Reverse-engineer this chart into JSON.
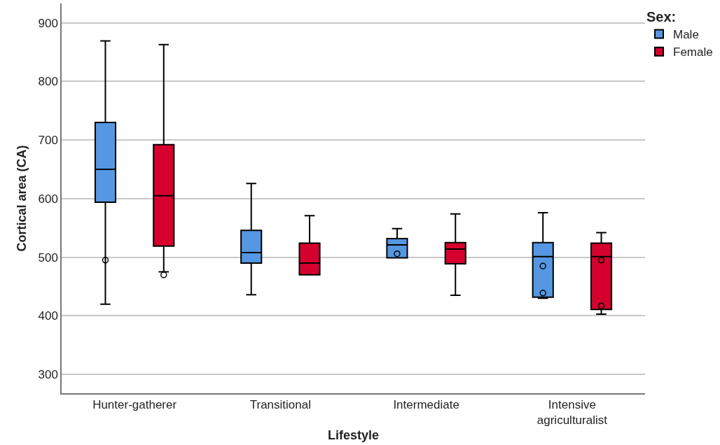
{
  "chart_data": {
    "type": "box",
    "xlabel": "Lifestyle",
    "ylabel": "Cortical area (CA)",
    "legend_title": "Sex:",
    "legend": "top right",
    "grid": "y",
    "marker": "circle",
    "categories": [
      "Hunter-gatherer",
      "Transitional",
      "Intermediate",
      "Intensive agriculturalist"
    ],
    "ylim": [
      268,
      933
    ],
    "yticks": [
      300,
      400,
      500,
      600,
      700,
      800,
      900
    ],
    "series": [
      {
        "name": "Male",
        "color": "#5597e2",
        "boxes": [
          {
            "low": 420,
            "q1": 594,
            "median": 650,
            "q3": 730,
            "high": 869,
            "outliers": [
              495
            ]
          },
          {
            "low": 436,
            "q1": 490,
            "median": 508,
            "q3": 546,
            "high": 626
          },
          {
            "low": 499,
            "q1": 499,
            "median": 521,
            "q3": 532,
            "high": 549,
            "outliers": [
              506
            ]
          },
          {
            "low": 430,
            "q1": 432,
            "median": 501,
            "q3": 525,
            "high": 576,
            "outliers": [
              485,
              439
            ]
          }
        ]
      },
      {
        "name": "Female",
        "color": "#d6002e",
        "boxes": [
          {
            "low": 475,
            "q1": 519,
            "median": 605,
            "q3": 692,
            "high": 863,
            "outliers": [
              470
            ]
          },
          {
            "low": 470,
            "q1": 470,
            "median": 490,
            "q3": 524,
            "high": 571
          },
          {
            "low": 435,
            "q1": 489,
            "median": 514,
            "q3": 525,
            "high": 574
          },
          {
            "low": 403,
            "q1": 411,
            "median": 501,
            "q3": 524,
            "high": 542,
            "outliers": [
              495,
              417
            ]
          }
        ]
      }
    ]
  }
}
